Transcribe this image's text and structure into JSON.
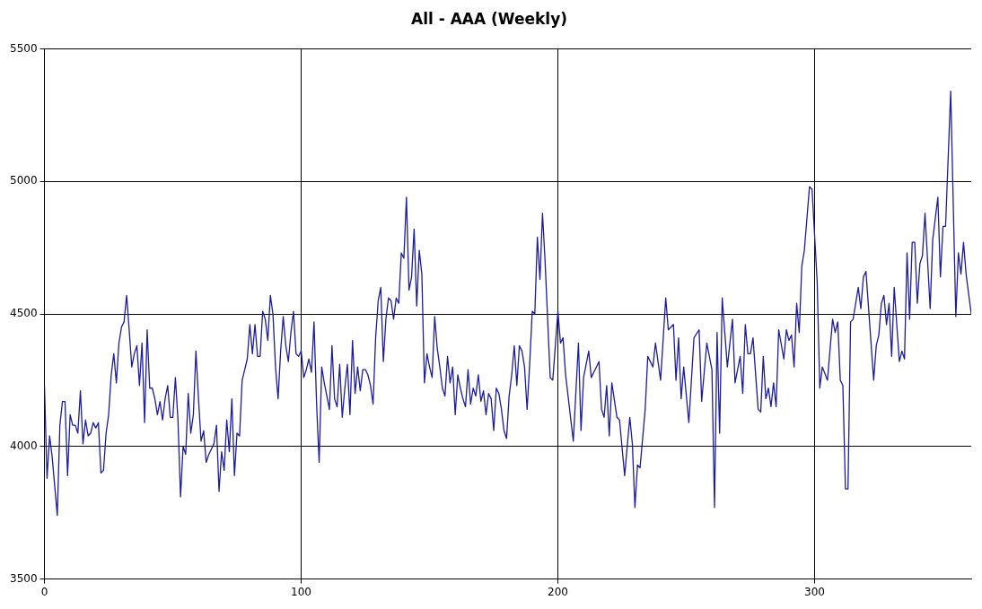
{
  "chart_data": {
    "type": "line",
    "title": "All - AAA (Weekly)",
    "xlim": [
      0,
      361
    ],
    "xticks": [
      0,
      100,
      200,
      300
    ],
    "ylim": [
      3500,
      5500
    ],
    "yticks": [
      3500,
      4000,
      4500,
      5000,
      5500
    ],
    "grid": true,
    "marker": "none",
    "line_style": "solid",
    "series": [
      {
        "color": "#1c1ca0",
        "x": [
          0,
          1,
          2,
          3,
          5,
          6,
          7,
          8,
          9,
          10,
          11,
          12,
          13,
          14,
          15,
          16,
          17,
          18,
          19,
          20,
          21,
          22,
          23,
          24,
          25,
          26,
          27,
          28,
          29,
          30,
          31,
          32,
          33,
          34,
          35,
          36,
          37,
          38,
          39,
          40,
          41,
          42,
          43,
          44,
          45,
          46,
          47,
          48,
          49,
          50,
          51,
          52,
          53,
          54,
          55,
          56,
          57,
          58,
          59,
          60,
          61,
          62,
          63,
          64,
          65,
          66,
          67,
          68,
          69,
          70,
          71,
          72,
          73,
          74,
          75,
          76,
          77,
          78,
          79,
          80,
          81,
          82,
          83,
          84,
          85,
          86,
          87,
          88,
          89,
          90,
          91,
          92,
          93,
          94,
          95,
          96,
          97,
          98,
          99,
          100,
          101,
          102,
          103,
          104,
          105,
          106,
          107,
          108,
          109,
          110,
          111,
          112,
          113,
          114,
          115,
          116,
          117,
          118,
          119,
          120,
          121,
          122,
          123,
          124,
          125,
          126,
          127,
          128,
          129,
          130,
          131,
          132,
          133,
          134,
          135,
          136,
          137,
          138,
          139,
          140,
          141,
          142,
          143,
          144,
          145,
          146,
          147,
          148,
          149,
          150,
          151,
          152,
          153,
          154,
          155,
          156,
          157,
          158,
          159,
          160,
          161,
          162,
          163,
          164,
          165,
          166,
          167,
          168,
          169,
          170,
          171,
          172,
          173,
          174,
          175,
          176,
          177,
          178,
          179,
          180,
          181,
          182,
          183,
          184,
          185,
          186,
          187,
          188,
          189,
          190,
          191,
          192,
          193,
          194,
          195,
          196,
          197,
          198,
          199,
          200,
          201,
          202,
          203,
          206,
          208,
          209,
          210,
          212,
          213,
          216,
          217,
          218,
          219,
          220,
          221,
          223,
          224,
          226,
          228,
          229,
          230,
          231,
          232,
          234,
          235,
          237,
          238,
          240,
          242,
          243,
          245,
          246,
          247,
          248,
          249,
          251,
          253,
          255,
          256,
          258,
          260,
          261,
          262,
          263,
          264,
          266,
          268,
          269,
          271,
          272,
          273,
          274,
          275,
          276,
          278,
          279,
          280,
          281,
          282,
          283,
          284,
          285,
          286,
          288,
          289,
          290,
          291,
          292,
          293,
          294,
          295,
          296,
          298,
          299,
          301,
          302,
          303,
          305,
          307,
          308,
          309,
          310,
          311,
          312,
          313,
          314,
          315,
          317,
          318,
          319,
          320,
          323,
          324,
          325,
          326,
          327,
          328,
          329,
          330,
          331,
          333,
          334,
          335,
          336,
          337,
          338,
          339,
          340,
          341,
          342,
          343,
          345,
          346,
          348,
          349,
          350,
          351,
          353,
          355,
          356,
          357,
          358,
          359,
          361
        ],
        "values": [
          4230,
          3880,
          4040,
          3960,
          3740,
          4080,
          4170,
          4170,
          3890,
          4120,
          4080,
          4080,
          4050,
          4210,
          4010,
          4100,
          4040,
          4050,
          4090,
          4070,
          4090,
          3900,
          3910,
          4050,
          4120,
          4270,
          4350,
          4240,
          4390,
          4450,
          4470,
          4570,
          4440,
          4300,
          4350,
          4380,
          4230,
          4390,
          4090,
          4440,
          4220,
          4220,
          4180,
          4120,
          4170,
          4100,
          4180,
          4230,
          4110,
          4110,
          4260,
          4100,
          3810,
          4000,
          3970,
          4200,
          4050,
          4120,
          4360,
          4180,
          4020,
          4060,
          3940,
          3970,
          3990,
          4010,
          4080,
          3830,
          3980,
          3910,
          4100,
          3980,
          4180,
          3890,
          4050,
          4040,
          4250,
          4290,
          4330,
          4460,
          4350,
          4460,
          4340,
          4340,
          4510,
          4480,
          4400,
          4570,
          4500,
          4300,
          4180,
          4360,
          4490,
          4380,
          4320,
          4430,
          4510,
          4350,
          4340,
          4360,
          4260,
          4290,
          4330,
          4280,
          4470,
          4160,
          3940,
          4300,
          4240,
          4190,
          4140,
          4380,
          4180,
          4150,
          4310,
          4110,
          4220,
          4310,
          4120,
          4400,
          4200,
          4300,
          4210,
          4290,
          4290,
          4270,
          4230,
          4160,
          4410,
          4550,
          4600,
          4320,
          4480,
          4560,
          4550,
          4480,
          4560,
          4540,
          4730,
          4710,
          4940,
          4590,
          4640,
          4820,
          4530,
          4740,
          4650,
          4240,
          4350,
          4300,
          4260,
          4490,
          4370,
          4300,
          4220,
          4190,
          4340,
          4240,
          4300,
          4120,
          4270,
          4220,
          4180,
          4150,
          4290,
          4160,
          4220,
          4190,
          4270,
          4170,
          4210,
          4120,
          4200,
          4180,
          4060,
          4220,
          4200,
          4140,
          4060,
          4030,
          4190,
          4270,
          4380,
          4230,
          4380,
          4360,
          4300,
          4140,
          4310,
          4510,
          4500,
          4790,
          4630,
          4880,
          4700,
          4480,
          4260,
          4250,
          4380,
          4510,
          4390,
          4410,
          4270,
          4020,
          4390,
          4060,
          4260,
          4360,
          4260,
          4320,
          4140,
          4110,
          4230,
          4040,
          4240,
          4110,
          4100,
          3890,
          4110,
          4010,
          3770,
          3930,
          3920,
          4140,
          4340,
          4300,
          4390,
          4250,
          4560,
          4440,
          4460,
          4250,
          4410,
          4180,
          4300,
          4090,
          4410,
          4440,
          4170,
          4390,
          4290,
          3770,
          4430,
          4050,
          4560,
          4300,
          4480,
          4240,
          4340,
          4200,
          4460,
          4350,
          4350,
          4410,
          4140,
          4130,
          4340,
          4180,
          4220,
          4150,
          4240,
          4150,
          4440,
          4330,
          4440,
          4400,
          4420,
          4300,
          4540,
          4430,
          4680,
          4740,
          4980,
          4970,
          4620,
          4220,
          4300,
          4250,
          4480,
          4430,
          4470,
          4250,
          4230,
          3840,
          3840,
          4470,
          4480,
          4600,
          4520,
          4640,
          4660,
          4250,
          4380,
          4420,
          4540,
          4570,
          4460,
          4540,
          4340,
          4600,
          4320,
          4360,
          4330,
          4730,
          4480,
          4770,
          4770,
          4540,
          4690,
          4720,
          4880,
          4520,
          4780,
          4940,
          4640,
          4830,
          4830,
          5340,
          4490,
          4730,
          4650,
          4770,
          4650,
          4500
        ]
      }
    ]
  }
}
